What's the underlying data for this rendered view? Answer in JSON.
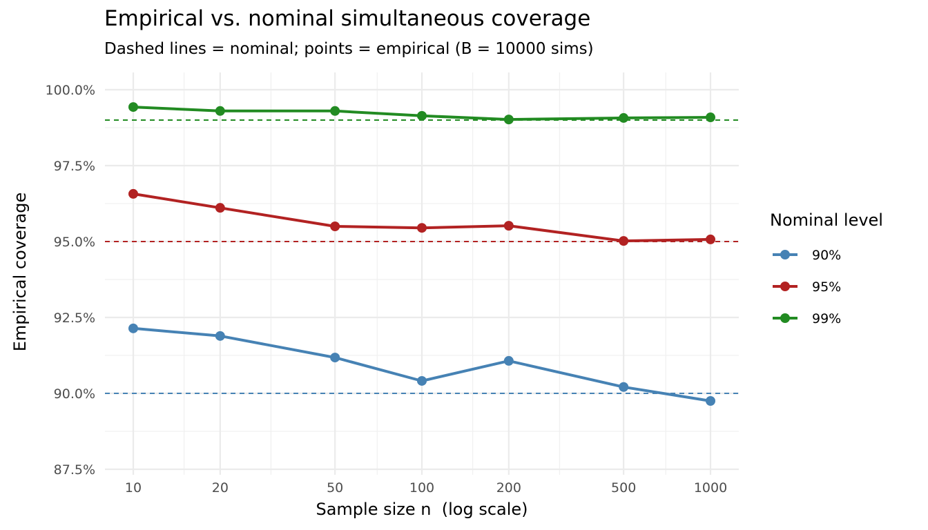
{
  "chart_data": {
    "type": "line",
    "title": "Empirical vs. nominal simultaneous coverage",
    "subtitle": "Dashed lines = nominal; points = empirical (B = 10000 sims)",
    "xlabel": "Sample size n  (log scale)",
    "ylabel": "Empirical coverage",
    "x_scale": "log10",
    "x": [
      10,
      20,
      50,
      100,
      200,
      500,
      1000
    ],
    "x_ticks": [
      10,
      20,
      50,
      100,
      200,
      500,
      1000
    ],
    "x_tick_labels": [
      "10",
      "20",
      "50",
      "100",
      "200",
      "500",
      "1000"
    ],
    "y_ticks": [
      87.5,
      90.0,
      92.5,
      95.0,
      97.5,
      100.0
    ],
    "y_tick_labels": [
      "87.5%",
      "90.0%",
      "92.5%",
      "95.0%",
      "97.5%",
      "100.0%"
    ],
    "ylim": [
      87.5,
      100.0
    ],
    "grid": true,
    "legend": {
      "title": "Nominal level",
      "placement": "right"
    },
    "series": [
      {
        "name": "90%",
        "nominal": 90.0,
        "color": "#4682B4",
        "values": [
          92.14,
          91.89,
          91.18,
          90.41,
          91.07,
          90.21,
          89.75
        ]
      },
      {
        "name": "95%",
        "nominal": 95.0,
        "color": "#B22222",
        "values": [
          96.57,
          96.11,
          95.5,
          95.45,
          95.52,
          95.02,
          95.07
        ]
      },
      {
        "name": "99%",
        "nominal": 99.0,
        "color": "#228B22",
        "values": [
          99.43,
          99.3,
          99.3,
          99.14,
          99.02,
          99.07,
          99.09
        ]
      }
    ]
  }
}
